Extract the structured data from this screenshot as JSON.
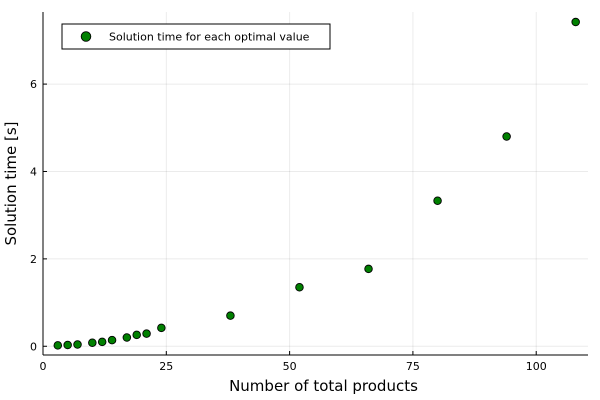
{
  "chart_data": {
    "type": "scatter",
    "xlabel": "Number of total products",
    "ylabel": "Solution time [s]",
    "xlim": [
      0,
      110.5
    ],
    "ylim": [
      -0.2,
      7.65
    ],
    "xticks": [
      0,
      25,
      50,
      75,
      100
    ],
    "yticks": [
      0,
      2,
      4,
      6
    ],
    "grid": true,
    "legend_position": "top-left",
    "series": [
      {
        "name": "Solution time for each optimal value",
        "color": "#008000",
        "x": [
          3,
          5,
          7,
          10,
          12,
          14,
          17,
          19,
          21,
          24,
          38,
          52,
          66,
          80,
          94,
          108
        ],
        "y": [
          0.02,
          0.03,
          0.04,
          0.08,
          0.1,
          0.14,
          0.2,
          0.26,
          0.29,
          0.42,
          0.7,
          1.35,
          1.77,
          3.33,
          4.8,
          7.42
        ]
      }
    ]
  }
}
